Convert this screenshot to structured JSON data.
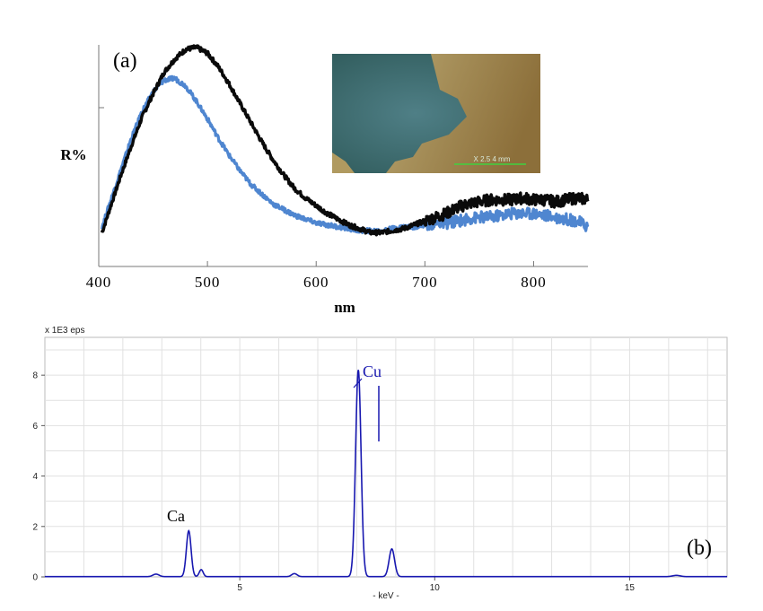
{
  "chart_data": [
    {
      "panel_label": "(a)",
      "type": "line",
      "xlabel": "nm",
      "ylabel": "R%",
      "xlim": [
        400,
        850
      ],
      "x_ticks": [
        400,
        500,
        600,
        700,
        800
      ],
      "y_tick_labels": false,
      "colors": {
        "black_series": "#0a0a0a",
        "blue_series": "#4f86d0"
      },
      "series": [
        {
          "color": "#0a0a0a",
          "x": [
            403,
            410,
            420,
            430,
            440,
            450,
            460,
            470,
            480,
            490,
            500,
            510,
            520,
            530,
            540,
            550,
            560,
            570,
            580,
            590,
            600,
            610,
            620,
            630,
            640,
            650,
            660,
            670,
            680,
            690,
            700,
            710,
            720,
            730,
            740,
            750,
            760,
            770,
            780,
            790,
            800,
            810,
            820,
            830,
            840,
            850
          ],
          "y": [
            0.05,
            0.17,
            0.34,
            0.5,
            0.65,
            0.77,
            0.88,
            0.95,
            1.0,
            1.01,
            0.98,
            0.91,
            0.82,
            0.72,
            0.62,
            0.52,
            0.43,
            0.35,
            0.28,
            0.23,
            0.19,
            0.15,
            0.12,
            0.09,
            0.07,
            0.05,
            0.05,
            0.06,
            0.07,
            0.09,
            0.11,
            0.13,
            0.15,
            0.18,
            0.2,
            0.21,
            0.22,
            0.22,
            0.22,
            0.23,
            0.22,
            0.22,
            0.21,
            0.22,
            0.23,
            0.22
          ]
        },
        {
          "color": "#4f86d0",
          "x": [
            403,
            410,
            420,
            430,
            440,
            450,
            460,
            470,
            480,
            490,
            500,
            510,
            520,
            530,
            540,
            550,
            560,
            570,
            580,
            590,
            600,
            610,
            620,
            630,
            640,
            650,
            660,
            670,
            680,
            690,
            700,
            710,
            720,
            730,
            740,
            750,
            760,
            770,
            780,
            790,
            800,
            810,
            820,
            830,
            840,
            850
          ],
          "y": [
            0.08,
            0.2,
            0.37,
            0.54,
            0.68,
            0.78,
            0.84,
            0.85,
            0.81,
            0.73,
            0.64,
            0.54,
            0.45,
            0.37,
            0.3,
            0.25,
            0.2,
            0.17,
            0.14,
            0.12,
            0.1,
            0.09,
            0.08,
            0.07,
            0.06,
            0.06,
            0.06,
            0.07,
            0.08,
            0.08,
            0.09,
            0.1,
            0.1,
            0.11,
            0.12,
            0.13,
            0.13,
            0.14,
            0.15,
            0.15,
            0.15,
            0.14,
            0.13,
            0.12,
            0.11,
            0.08
          ]
        }
      ],
      "inset": {
        "type": "micrograph",
        "scale_text": "X 2.5    4 mm",
        "scale_bar_color": "#3fd23f"
      }
    },
    {
      "panel_label": "(b)",
      "type": "line",
      "xlabel": "- keV -",
      "ylabel": "x 1E3 eps",
      "xlim": [
        0,
        17.5
      ],
      "ylim": [
        0,
        9.5
      ],
      "x_ticks": [
        5,
        10,
        15
      ],
      "y_ticks": [
        0,
        2,
        4,
        6,
        8
      ],
      "grid": true,
      "colors": {
        "spectrum": "#1818b0",
        "grid": "#d9d9d9"
      },
      "peaks": [
        {
          "label": "Ca",
          "center": 3.69,
          "height": 1.82,
          "width": 0.06
        },
        {
          "center": 4.01,
          "height": 0.28,
          "width": 0.05
        },
        {
          "center": 2.85,
          "height": 0.1,
          "width": 0.08
        },
        {
          "center": 6.4,
          "height": 0.12,
          "width": 0.07
        },
        {
          "label": "Cu",
          "center": 8.04,
          "height": 8.2,
          "width": 0.07
        },
        {
          "center": 8.9,
          "height": 1.1,
          "width": 0.07
        },
        {
          "center": 16.2,
          "height": 0.05,
          "width": 0.1
        }
      ],
      "annotations": [
        {
          "text": "Ca",
          "color": "#000000"
        },
        {
          "text": "Cu",
          "color": "#1818b0"
        }
      ]
    }
  ]
}
